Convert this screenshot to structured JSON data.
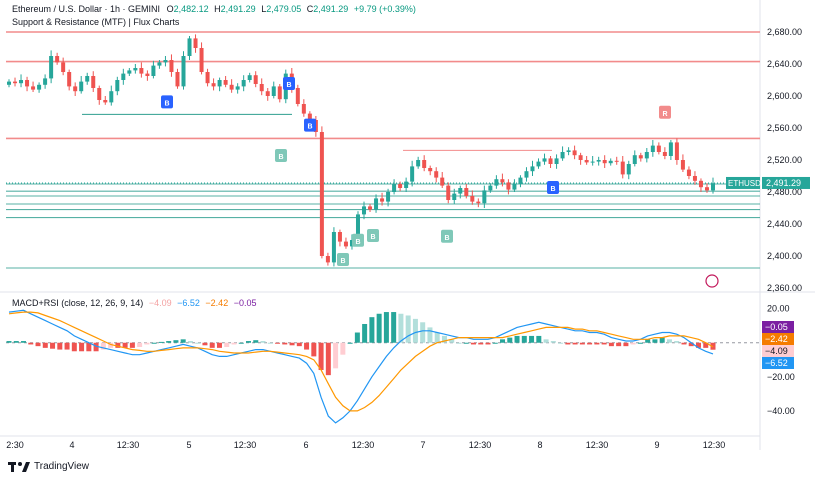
{
  "header": {
    "symbol_line": "Ethereum / U.S. Dollar · 1h · GEMINI",
    "o_label": "O",
    "o_value": "2,482.12",
    "h_label": "H",
    "h_value": "2,491.29",
    "l_label": "L",
    "l_value": "2,479.05",
    "c_label": "C",
    "c_value": "2,491.29",
    "change": "+9.79 (+0.39%)",
    "indicator": "Support & Resistance (MTF) | Flux Charts"
  },
  "price_tag": {
    "symbol": "ETHUSD",
    "value": "2,491.29"
  },
  "macd_header": {
    "label": "MACD+RSI (close, 12, 26, 9, 14)",
    "v1": "−4.09",
    "v2": "−6.52",
    "v3": "−2.42",
    "v4": "−0.05"
  },
  "macd_tags": [
    {
      "text": "−0.05",
      "color": "#7b1fa2"
    },
    {
      "text": "−2.42",
      "color": "#f57c00"
    },
    {
      "text": "−4.09",
      "color": "#ffcdd2"
    },
    {
      "text": "−6.52",
      "color": "#2196f3"
    }
  ],
  "branding": "TradingView",
  "colors": {
    "up": "#26a69a",
    "down": "#ef5350",
    "res": "#f28b8b",
    "sup": "#2e9e8f",
    "macd": "#2196f3",
    "signal": "#ff9800"
  },
  "chart_data": [
    {
      "type": "candlestick",
      "x_axis_labels": [
        "2:30",
        "4",
        "12:30",
        "5",
        "12:30",
        "6",
        "12:30",
        "7",
        "12:30",
        "8",
        "12:30",
        "9",
        "12:30"
      ],
      "y_axis_labels": [
        "2,680.00",
        "2,640.00",
        "2,600.00",
        "2,560.00",
        "2,520.00",
        "2,480.00",
        "2,440.00",
        "2,400.00",
        "2,360.00"
      ],
      "ylim": [
        2355,
        2695
      ],
      "resistance_levels": [
        2680,
        2643,
        2547
      ],
      "support_levels": [
        2490,
        2481,
        2475,
        2465,
        2458,
        2448,
        2385
      ],
      "short_levels": [
        {
          "value": 2577,
          "from": "4",
          "to": "6"
        },
        {
          "value": 2532,
          "from": "7",
          "to": "8"
        }
      ],
      "breaks": [
        {
          "label": "B",
          "kind": "down",
          "x": "5",
          "price": 2592
        },
        {
          "label": "B",
          "kind": "down",
          "x": "5 12:30",
          "price": 2615
        },
        {
          "label": "B",
          "kind": "down",
          "x": "6",
          "price": 2563
        },
        {
          "label": "B",
          "kind": "up",
          "x": "6",
          "price": 2525
        },
        {
          "label": "B",
          "kind": "up",
          "x": "6 12:30",
          "price": 2395
        },
        {
          "label": "B",
          "kind": "up",
          "x": "6 12:30",
          "price": 2419
        },
        {
          "label": "B",
          "kind": "up",
          "x": "6 12:30",
          "price": 2425
        },
        {
          "label": "B",
          "kind": "up",
          "x": "7",
          "price": 2424
        },
        {
          "label": "B",
          "kind": "down",
          "x": "8",
          "price": 2485
        },
        {
          "label": "R",
          "kind": "retest",
          "x": "9",
          "price": 2579
        }
      ],
      "last_price": 2491.29,
      "close": [
        2618,
        2616,
        2620,
        2612,
        2608,
        2614,
        2622,
        2650,
        2642,
        2630,
        2612,
        2606,
        2618,
        2625,
        2610,
        2595,
        2592,
        2606,
        2620,
        2628,
        2632,
        2635,
        2628,
        2625,
        2638,
        2642,
        2645,
        2630,
        2612,
        2650,
        2672,
        2660,
        2630,
        2616,
        2612,
        2620,
        2614,
        2608,
        2612,
        2620,
        2626,
        2615,
        2606,
        2600,
        2612,
        2596,
        2628,
        2610,
        2590,
        2578,
        2570,
        2555,
        2400,
        2392,
        2430,
        2418,
        2412,
        2420,
        2452,
        2462,
        2458,
        2472,
        2468,
        2480,
        2490,
        2485,
        2493,
        2512,
        2520,
        2510,
        2506,
        2498,
        2488,
        2470,
        2478,
        2485,
        2475,
        2468,
        2466,
        2482,
        2488,
        2496,
        2492,
        2483,
        2490,
        2498,
        2506,
        2512,
        2518,
        2522,
        2515,
        2522,
        2530,
        2532,
        2526,
        2520,
        2517,
        2518,
        2520,
        2516,
        2519,
        2518,
        2502,
        2515,
        2526,
        2522,
        2530,
        2538,
        2530,
        2525,
        2542,
        2520,
        2508,
        2500,
        2494,
        2486,
        2482,
        2491
      ]
    },
    {
      "type": "macd",
      "y_axis_labels": [
        "20.00",
        "−20.00",
        "−40.00"
      ],
      "ylim": [
        -50,
        28
      ],
      "macd": [
        18,
        18.5,
        19,
        17,
        15,
        13,
        11,
        9,
        7,
        4,
        2,
        0,
        -2,
        -3,
        -4,
        -5,
        -6,
        -7,
        -7,
        -6,
        -5,
        -4,
        -3,
        -2,
        -1,
        -2,
        -3,
        -5,
        -7,
        -8,
        -8,
        -7,
        -6,
        -5,
        -4,
        -4,
        -5,
        -6,
        -7,
        -8,
        -9,
        -12,
        -18,
        -32,
        -43,
        -47,
        -44,
        -40,
        -34,
        -27,
        -20,
        -14,
        -8,
        -3,
        1,
        4,
        6,
        7,
        7,
        6,
        5,
        4,
        3,
        3,
        2,
        2,
        2,
        3,
        5,
        7,
        9,
        10,
        11,
        12,
        11,
        10,
        9,
        8,
        7,
        7,
        6,
        6,
        5,
        3,
        2,
        1,
        1,
        2,
        4,
        5,
        6,
        6,
        5,
        3,
        0,
        -3,
        -5,
        -6.52
      ],
      "signal": [
        17,
        17.5,
        18,
        18,
        17.5,
        16,
        14.5,
        13,
        11,
        9,
        7,
        5,
        3,
        1,
        -1,
        -2,
        -3,
        -4,
        -4.5,
        -5,
        -5,
        -4.5,
        -4,
        -3.5,
        -3,
        -3,
        -3,
        -3.5,
        -4,
        -5,
        -5.5,
        -6,
        -6,
        -6,
        -5.5,
        -5,
        -5,
        -5.5,
        -6,
        -6.5,
        -7,
        -8,
        -10,
        -16,
        -24,
        -32,
        -37,
        -40,
        -40,
        -38,
        -35,
        -31,
        -26,
        -21,
        -16,
        -12,
        -8,
        -5,
        -2,
        0,
        1,
        2,
        3,
        3,
        3,
        3,
        3,
        3,
        3,
        4,
        5,
        6,
        7,
        8,
        9,
        9,
        9,
        9,
        8,
        8,
        7,
        7,
        6,
        5,
        4,
        3,
        2,
        2,
        2,
        3,
        3,
        4,
        4,
        4,
        3,
        2,
        0,
        -2.42
      ],
      "histogram": [
        1,
        1,
        1,
        -1,
        -2,
        -3,
        -3.5,
        -4,
        -4,
        -5,
        -5,
        -5,
        -5,
        -4,
        -3,
        -3,
        -3,
        -3,
        -2.5,
        -1,
        0,
        0.5,
        1,
        1.5,
        2,
        1,
        0,
        -1.5,
        -3,
        -3,
        -2.5,
        -1,
        0,
        1,
        1.5,
        1,
        0,
        -0.5,
        -1,
        -1.5,
        -2,
        -4,
        -8,
        -16,
        -19,
        -15,
        -7,
        0,
        6,
        11,
        15,
        17,
        18,
        18,
        17,
        16,
        14,
        12,
        9,
        6,
        4,
        2,
        0,
        0,
        -1,
        -1,
        -1,
        0,
        2,
        3,
        4,
        4,
        4,
        4,
        2,
        1,
        0,
        -1,
        -1,
        -1,
        -1,
        -1,
        -1,
        -2,
        -2,
        -2,
        -1,
        0,
        2,
        2,
        3,
        2,
        1,
        -1,
        -2,
        -3,
        -3,
        -4.09
      ]
    }
  ]
}
